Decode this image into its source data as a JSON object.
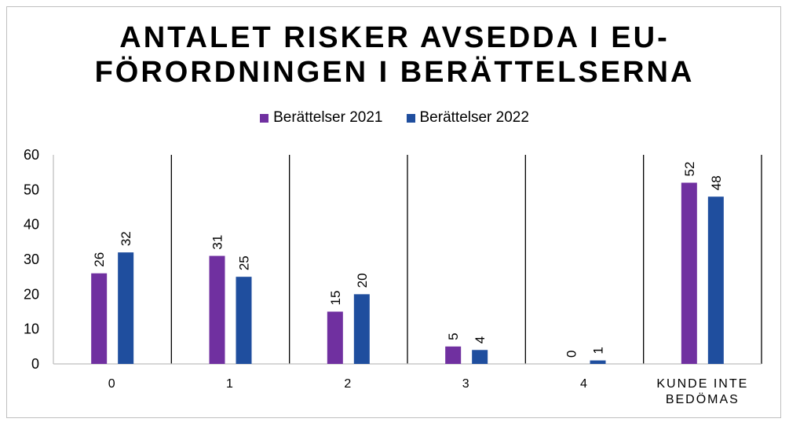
{
  "title_line1": "ANTALET RISKER AVSEDDA I EU-",
  "title_line2": "FÖRORDNINGEN I BERÄTTELSERNA",
  "colors": {
    "series1": "#7030a0",
    "series2": "#1f4e9e"
  },
  "chart_data": {
    "type": "bar",
    "title": "ANTALET RISKER AVSEDDA I EU-FÖRORDNINGEN I BERÄTTELSERNA",
    "categories": [
      "0",
      "1",
      "2",
      "3",
      "4",
      "KUNDE INTE BEDÖMAS"
    ],
    "category_lines": [
      [
        "0"
      ],
      [
        "1"
      ],
      [
        "2"
      ],
      [
        "3"
      ],
      [
        "4"
      ],
      [
        "KUNDE INTE",
        "BEDÖMAS"
      ]
    ],
    "series": [
      {
        "name": "Berättelser 2021",
        "values": [
          26,
          31,
          15,
          5,
          0,
          52
        ]
      },
      {
        "name": "Berättelser 2022",
        "values": [
          32,
          25,
          20,
          4,
          1,
          48
        ]
      }
    ],
    "ylim": [
      0,
      60
    ],
    "yticks": [
      "0",
      "10",
      "20",
      "30",
      "40",
      "50",
      "60"
    ],
    "legend_position": "top",
    "data_labels": true,
    "grid": false
  }
}
